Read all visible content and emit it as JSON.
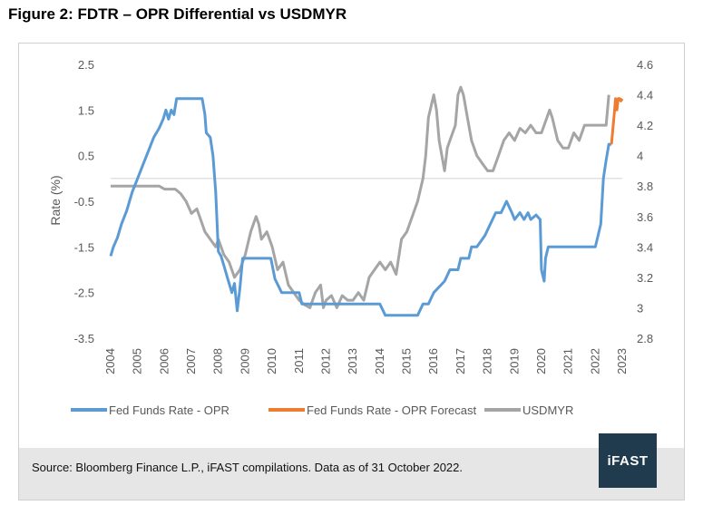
{
  "figure_title": "Figure 2: FDTR – OPR Differential vs USDMYR",
  "source_note": "Source: Bloomberg Finance L.P., iFAST compilations. Data as of 31 October 2022.",
  "logo_text": "iFAST",
  "colors": {
    "fed_funds": "#5b9bd5",
    "forecast": "#ed7d31",
    "usdmyr": "#a5a5a5",
    "zero_line": "#d9d9d9",
    "logo_bg": "#1f3b4d"
  },
  "chart_data": {
    "type": "line",
    "title": "",
    "ylabel": "Rate (%)",
    "y2label": "",
    "ylim": [
      -3.5,
      2.5
    ],
    "y_ticks": [
      "2.5",
      "1.5",
      "0.5",
      "-0.5",
      "-1.5",
      "-2.5",
      "-3.5"
    ],
    "y2lim": [
      2.8,
      4.6
    ],
    "y2_ticks": [
      "4.6",
      "4.4",
      "4.2",
      "4",
      "3.8",
      "3.6",
      "3.4",
      "3.2",
      "3",
      "2.8"
    ],
    "xlim": [
      2004,
      2023
    ],
    "x_ticks": [
      "2004",
      "2005",
      "2006",
      "2007",
      "2008",
      "2009",
      "2010",
      "2011",
      "2012",
      "2013",
      "2014",
      "2015",
      "2016",
      "2017",
      "2018",
      "2019",
      "2020",
      "2021",
      "2022",
      "2023"
    ],
    "grid": false,
    "zero_line": true,
    "legend_position": "bottom",
    "series": [
      {
        "name": "Fed Funds Rate - OPR",
        "axis": "left",
        "x": [
          2004.0,
          2004.1,
          2004.25,
          2004.4,
          2004.6,
          2004.8,
          2005.0,
          2005.2,
          2005.4,
          2005.6,
          2005.8,
          2005.95,
          2006.05,
          2006.15,
          2006.25,
          2006.35,
          2006.45,
          2006.6,
          2006.8,
          2007.0,
          2007.2,
          2007.4,
          2007.5,
          2007.55,
          2007.7,
          2007.8,
          2007.9,
          2008.0,
          2008.1,
          2008.2,
          2008.35,
          2008.5,
          2008.6,
          2008.7,
          2008.8,
          2008.9,
          2009.0,
          2009.5,
          2009.95,
          2010.1,
          2010.35,
          2010.6,
          2011.0,
          2011.1,
          2011.5,
          2012.0,
          2013.0,
          2014.0,
          2014.2,
          2015.0,
          2015.4,
          2015.6,
          2015.8,
          2016.0,
          2016.4,
          2016.6,
          2016.9,
          2017.0,
          2017.3,
          2017.4,
          2017.6,
          2017.9,
          2018.1,
          2018.3,
          2018.5,
          2018.7,
          2018.9,
          2019.0,
          2019.2,
          2019.35,
          2019.5,
          2019.6,
          2019.8,
          2019.95,
          2020.0,
          2020.1,
          2020.15,
          2020.25,
          2020.4,
          2021.0,
          2021.5,
          2022.0,
          2022.1,
          2022.2,
          2022.3,
          2022.4,
          2022.5,
          2022.6
        ],
        "values": [
          -1.7,
          -1.5,
          -1.3,
          -1.0,
          -0.7,
          -0.3,
          0.0,
          0.3,
          0.6,
          0.9,
          1.1,
          1.3,
          1.5,
          1.3,
          1.5,
          1.4,
          1.75,
          1.75,
          1.75,
          1.75,
          1.75,
          1.75,
          1.4,
          1.0,
          0.9,
          0.5,
          -0.3,
          -1.6,
          -1.7,
          -1.9,
          -2.2,
          -2.5,
          -2.3,
          -2.9,
          -2.4,
          -1.75,
          -1.75,
          -1.75,
          -1.75,
          -2.2,
          -2.5,
          -2.5,
          -2.5,
          -2.75,
          -2.75,
          -2.75,
          -2.75,
          -2.75,
          -3.0,
          -3.0,
          -3.0,
          -2.75,
          -2.75,
          -2.5,
          -2.25,
          -2.0,
          -2.0,
          -1.75,
          -1.75,
          -1.5,
          -1.5,
          -1.25,
          -1.0,
          -0.75,
          -0.75,
          -0.5,
          -0.75,
          -0.9,
          -0.75,
          -0.9,
          -0.75,
          -0.9,
          -0.8,
          -0.9,
          -2.0,
          -2.25,
          -1.75,
          -1.5,
          -1.5,
          -1.5,
          -1.5,
          -1.5,
          -1.25,
          -1.0,
          0.0,
          0.4,
          0.75,
          0.75
        ]
      },
      {
        "name": "Fed Funds Rate - OPR Forecast",
        "axis": "left",
        "x": [
          2022.6,
          2022.7,
          2022.75,
          2022.8,
          2022.85,
          2022.9,
          2022.95,
          2023.0
        ],
        "values": [
          0.75,
          1.4,
          1.75,
          1.5,
          1.75,
          1.75,
          1.7,
          1.75
        ]
      },
      {
        "name": "USDMYR",
        "axis": "right",
        "x": [
          2004.0,
          2005.0,
          2005.5,
          2005.8,
          2006.0,
          2006.2,
          2006.4,
          2006.6,
          2006.8,
          2007.0,
          2007.2,
          2007.3,
          2007.5,
          2007.7,
          2007.9,
          2008.0,
          2008.2,
          2008.4,
          2008.6,
          2008.8,
          2009.0,
          2009.2,
          2009.4,
          2009.5,
          2009.6,
          2009.8,
          2010.0,
          2010.2,
          2010.4,
          2010.6,
          2010.8,
          2011.0,
          2011.2,
          2011.4,
          2011.6,
          2011.8,
          2011.9,
          2012.0,
          2012.2,
          2012.4,
          2012.6,
          2012.8,
          2013.0,
          2013.2,
          2013.4,
          2013.6,
          2013.8,
          2014.0,
          2014.2,
          2014.4,
          2014.6,
          2014.8,
          2015.0,
          2015.2,
          2015.4,
          2015.6,
          2015.7,
          2015.8,
          2016.0,
          2016.1,
          2016.2,
          2016.3,
          2016.4,
          2016.5,
          2016.6,
          2016.7,
          2016.8,
          2016.9,
          2017.0,
          2017.1,
          2017.2,
          2017.3,
          2017.4,
          2017.6,
          2017.8,
          2018.0,
          2018.2,
          2018.3,
          2018.4,
          2018.6,
          2018.8,
          2019.0,
          2019.2,
          2019.4,
          2019.6,
          2019.8,
          2020.0,
          2020.2,
          2020.3,
          2020.4,
          2020.6,
          2020.8,
          2021.0,
          2021.2,
          2021.4,
          2021.6,
          2021.8,
          2022.0,
          2022.2,
          2022.4,
          2022.5
        ],
        "values": [
          3.8,
          3.8,
          3.8,
          3.8,
          3.78,
          3.78,
          3.78,
          3.75,
          3.7,
          3.62,
          3.65,
          3.6,
          3.5,
          3.45,
          3.4,
          3.45,
          3.35,
          3.3,
          3.2,
          3.25,
          3.35,
          3.5,
          3.6,
          3.55,
          3.45,
          3.5,
          3.4,
          3.25,
          3.3,
          3.15,
          3.1,
          3.05,
          3.02,
          3.0,
          3.1,
          3.15,
          3.0,
          3.05,
          3.08,
          3.0,
          3.08,
          3.05,
          3.05,
          3.1,
          3.05,
          3.2,
          3.25,
          3.3,
          3.25,
          3.3,
          3.22,
          3.45,
          3.5,
          3.6,
          3.7,
          3.85,
          4.0,
          4.25,
          4.4,
          4.3,
          4.1,
          4.0,
          3.9,
          4.05,
          4.1,
          4.15,
          4.2,
          4.4,
          4.45,
          4.4,
          4.3,
          4.2,
          4.1,
          4.0,
          3.95,
          3.9,
          3.9,
          3.95,
          4.0,
          4.1,
          4.15,
          4.1,
          4.18,
          4.15,
          4.2,
          4.15,
          4.15,
          4.25,
          4.3,
          4.25,
          4.1,
          4.05,
          4.05,
          4.15,
          4.1,
          4.2,
          4.2,
          4.2,
          4.2,
          4.2,
          4.4
        ]
      }
    ]
  }
}
